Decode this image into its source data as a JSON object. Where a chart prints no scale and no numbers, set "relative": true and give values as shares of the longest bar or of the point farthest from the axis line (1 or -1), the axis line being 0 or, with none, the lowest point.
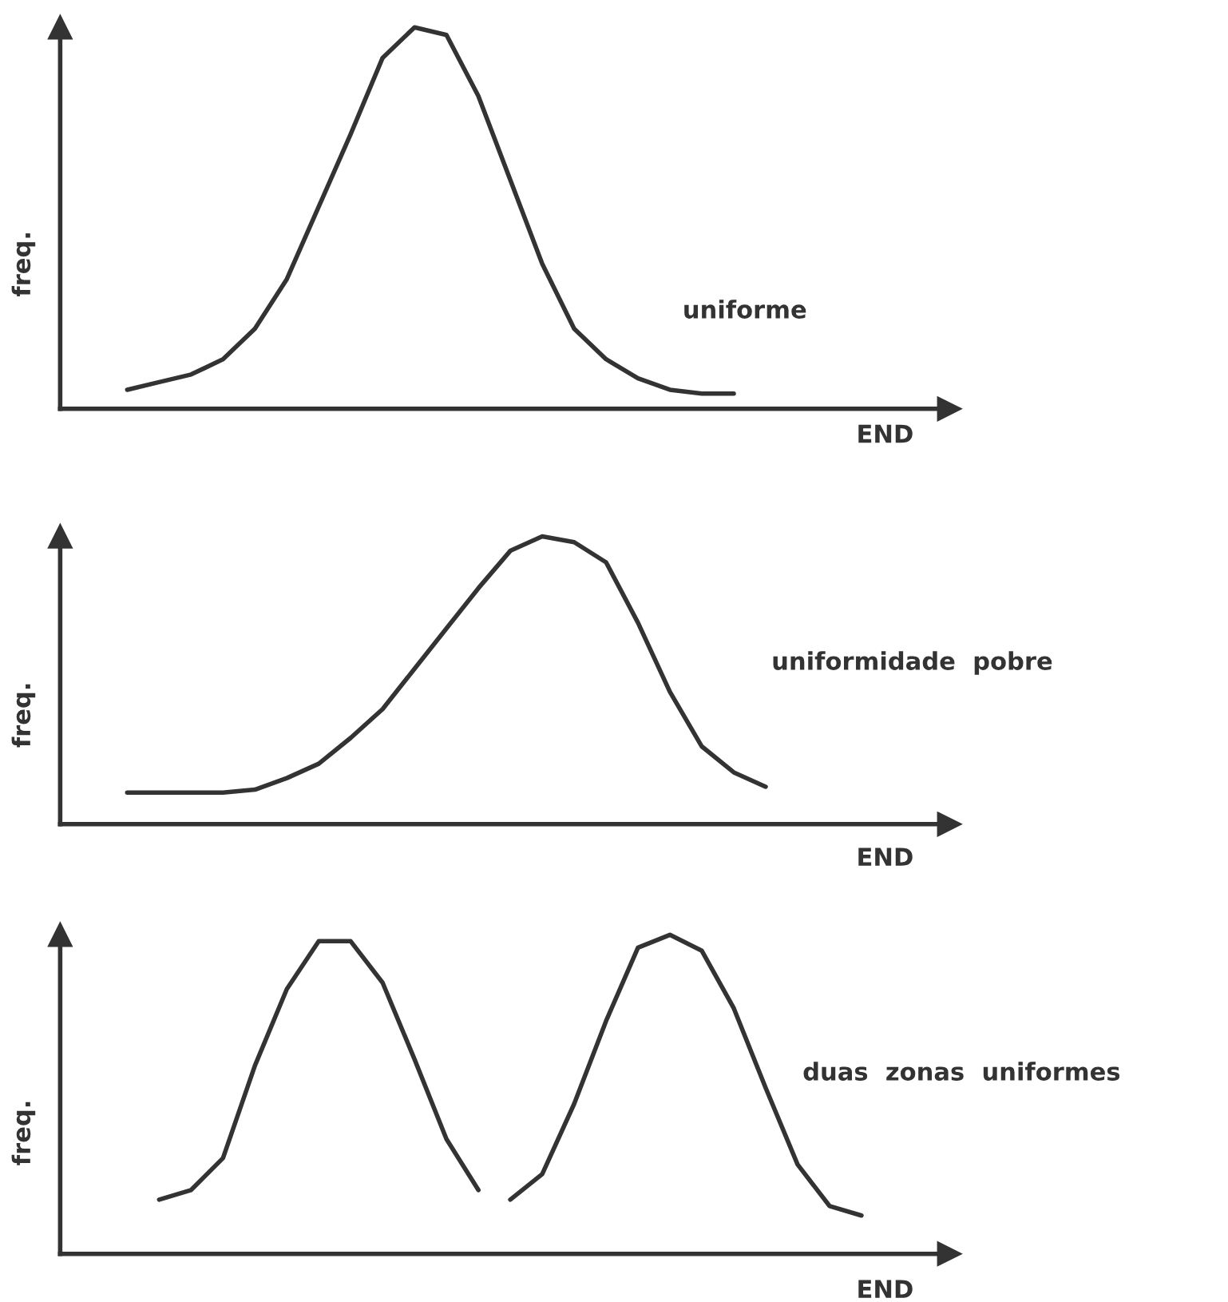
{
  "chart_data": [
    {
      "type": "line",
      "relative": true,
      "xlabel": "END",
      "ylabel": "freq.",
      "annotations": [
        "uniforme"
      ],
      "grid": false,
      "legend": false,
      "categories": [
        null,
        null,
        null,
        null,
        null,
        null,
        null,
        null,
        null,
        null,
        null,
        null,
        null,
        null,
        null,
        null,
        null,
        null,
        null,
        null,
        null,
        null,
        null,
        null,
        null,
        null,
        null,
        null
      ],
      "series": [
        {
          "color": "#333333",
          "values": [
            null,
            null,
            0.05,
            0.07,
            0.09,
            0.13,
            0.21,
            0.34,
            0.53,
            0.72,
            0.92,
            1.0,
            0.98,
            0.82,
            0.6,
            0.38,
            0.21,
            0.13,
            0.08,
            0.05,
            0.04,
            0.04,
            null,
            null,
            null,
            null,
            null,
            null
          ]
        }
      ]
    },
    {
      "type": "line",
      "relative": true,
      "xlabel": "END",
      "ylabel": "freq.",
      "annotations": [
        "uniformidade  pobre"
      ],
      "grid": false,
      "legend": false,
      "categories": [
        null,
        null,
        null,
        null,
        null,
        null,
        null,
        null,
        null,
        null,
        null,
        null,
        null,
        null,
        null,
        null,
        null,
        null,
        null,
        null,
        null,
        null,
        null,
        null,
        null,
        null,
        null,
        null
      ],
      "series": [
        {
          "color": "#333333",
          "values": [
            null,
            null,
            0.11,
            0.11,
            0.11,
            0.11,
            0.12,
            0.16,
            0.21,
            0.3,
            0.4,
            0.54,
            0.68,
            0.82,
            0.95,
            1.0,
            0.98,
            0.91,
            0.7,
            0.46,
            0.27,
            0.18,
            0.13,
            null,
            null,
            null,
            null,
            null
          ]
        }
      ]
    },
    {
      "type": "line",
      "relative": true,
      "xlabel": "END",
      "ylabel": "freq.",
      "annotations": [
        "duas  zonas  uniformes"
      ],
      "grid": false,
      "legend": false,
      "categories": [
        null,
        null,
        null,
        null,
        null,
        null,
        null,
        null,
        null,
        null,
        null,
        null,
        null,
        null,
        null,
        null,
        null,
        null,
        null,
        null,
        null,
        null,
        null,
        null,
        null,
        null,
        null,
        null
      ],
      "series": [
        {
          "color": "#333333",
          "values": [
            null,
            null,
            null,
            0.17,
            0.2,
            0.3,
            0.59,
            0.83,
            0.98,
            0.98,
            0.85,
            0.61,
            0.36,
            0.2,
            null,
            null,
            null,
            null,
            null,
            null,
            null,
            null,
            null,
            null,
            null,
            null,
            null,
            null
          ]
        },
        {
          "color": "#333333",
          "values": [
            null,
            null,
            null,
            null,
            null,
            null,
            null,
            null,
            null,
            null,
            null,
            null,
            null,
            null,
            0.17,
            0.25,
            0.47,
            0.73,
            0.96,
            1.0,
            0.95,
            0.77,
            0.52,
            0.28,
            0.15,
            0.12,
            null,
            null
          ]
        }
      ]
    }
  ]
}
